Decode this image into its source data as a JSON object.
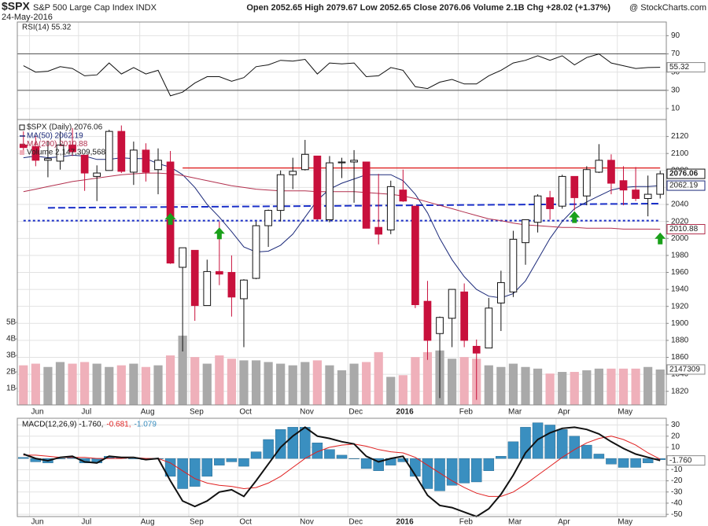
{
  "header": {
    "symbol": "$SPX",
    "name": "S&P 500 Large Cap Index INDX",
    "date": "24-May-2016",
    "quote": "Open 2052.65 High 2079.67 Low 2052.65 Close 2076.06 Volume 2.1B Chg +28.02 (+1.37%)",
    "source": "@ StockCharts.com"
  },
  "chart_data": [
    {
      "type": "line",
      "series": [
        {
          "name": "RSI(14) 55.32",
          "color": "#111111",
          "values": [
            57,
            50,
            51,
            56,
            54,
            46,
            47,
            60,
            48,
            55,
            48,
            52,
            24,
            28,
            38,
            45,
            45,
            40,
            44,
            56,
            58,
            63,
            62,
            64,
            48,
            60,
            59,
            60,
            45,
            46,
            55,
            52,
            34,
            32,
            39,
            42,
            37,
            37,
            46,
            52,
            60,
            63,
            68,
            63,
            68,
            58,
            66,
            70,
            60,
            57,
            54,
            55,
            55.32
          ]
        }
      ],
      "thresholds": [
        30,
        70
      ],
      "ylim": [
        -2,
        105
      ],
      "yticks": [
        10,
        30,
        50,
        70,
        90
      ],
      "grid": true
    },
    {
      "type": "candlestick",
      "title": "$SPX (Daily) 2076.06",
      "categories": [
        null,
        "Jun",
        null,
        null,
        null,
        "Jul",
        null,
        null,
        null,
        null,
        "Aug",
        null,
        null,
        null,
        "Sep",
        null,
        null,
        null,
        "Oct",
        null,
        null,
        null,
        null,
        "Nov",
        null,
        null,
        null,
        "Dec",
        null,
        null,
        null,
        "2016",
        null,
        null,
        null,
        null,
        "Feb",
        null,
        null,
        null,
        "Mar",
        null,
        null,
        null,
        "Apr",
        null,
        null,
        null,
        null,
        "May",
        null,
        null,
        null
      ],
      "open": [
        2110,
        2108,
        2092,
        2091,
        2110,
        2098,
        2073,
        2080,
        2126,
        2078,
        2104,
        2081,
        2090,
        1966,
        1986,
        1921,
        1961,
        1960,
        1929,
        1953,
        2015,
        2033,
        2075,
        2081,
        2097,
        2022,
        2089,
        2090,
        2090,
        2013,
        2010,
        2057,
        2038,
        1926,
        1888,
        1906,
        1937,
        1873,
        1871,
        1924,
        1937,
        1995,
        2019,
        2048,
        2038,
        2073,
        2050,
        2078,
        2092,
        2068,
        2057,
        2047,
        2052
      ],
      "high": [
        2126,
        2121,
        2115,
        2126,
        2130,
        2098,
        2086,
        2128,
        2133,
        2114,
        2112,
        2106,
        2103,
        1989,
        1986,
        1975,
        2020,
        1980,
        1952,
        2020,
        2034,
        2080,
        2095,
        2116,
        2097,
        2097,
        2095,
        2104,
        2090,
        2076,
        2068,
        2081,
        2038,
        1950,
        1908,
        1940,
        1947,
        1881,
        1930,
        1962,
        2009,
        2022,
        2052,
        2056,
        2075,
        2073,
        2085,
        2111,
        2099,
        2085,
        2084,
        2074,
        2079.67
      ],
      "low": [
        2099,
        2085,
        2072,
        2081,
        2097,
        2056,
        2044,
        2080,
        2077,
        2063,
        2067,
        2052,
        1970,
        1867,
        1903,
        1921,
        1945,
        1908,
        1872,
        1952,
        1990,
        2020,
        2058,
        2080,
        2022,
        2019,
        2071,
        2042,
        2013,
        1993,
        2005,
        2043,
        1918,
        1857,
        1812,
        1872,
        1872,
        1810,
        1871,
        1891,
        1931,
        1969,
        2007,
        2022,
        2035,
        2033,
        2039,
        2077,
        2052,
        2039,
        2044,
        2026,
        2047
      ],
      "close": [
        2107,
        2092,
        2094,
        2110,
        2102,
        2077,
        2077,
        2126,
        2079,
        2104,
        2078,
        2092,
        1971,
        1989,
        1921,
        1961,
        1958,
        1931,
        1951,
        2015,
        2033,
        2075,
        2079,
        2099,
        2023,
        2089,
        2090,
        2092,
        2012,
        2005,
        2061,
        2044,
        1922,
        1880,
        1907,
        1940,
        1880,
        1865,
        1918,
        1948,
        1999,
        2022,
        2050,
        2035,
        2073,
        2048,
        2081,
        2092,
        2065,
        2057,
        2047,
        2052,
        2076.06
      ],
      "up_color": "#111111",
      "down_color": "#c8103c",
      "series": [
        {
          "name": "MA(50) 2062.19",
          "color": "#1c2a7a",
          "values": [
            2095,
            2097,
            2095,
            2096,
            2098,
            2097,
            2093,
            2093,
            2095,
            2094,
            2094,
            2088,
            2084,
            2075,
            2060,
            2040,
            2025,
            2008,
            1990,
            1984,
            1985,
            1992,
            2005,
            2025,
            2045,
            2058,
            2065,
            2070,
            2075,
            2075,
            2075,
            2068,
            2052,
            2030,
            2000,
            1975,
            1955,
            1940,
            1932,
            1930,
            1935,
            1950,
            1975,
            2000,
            2020,
            2035,
            2043,
            2050,
            2057,
            2060,
            2061,
            2061,
            2062.19
          ]
        },
        {
          "name": "MA(200) 2010.88",
          "color": "#b2304e",
          "values": [
            2055,
            2058,
            2061,
            2064,
            2067,
            2069,
            2071,
            2073,
            2075,
            2076,
            2077,
            2077,
            2076,
            2074,
            2071,
            2068,
            2065,
            2062,
            2060,
            2058,
            2057,
            2056,
            2056,
            2056,
            2055,
            2055,
            2055,
            2055,
            2054,
            2053,
            2052,
            2050,
            2047,
            2043,
            2039,
            2035,
            2031,
            2027,
            2023,
            2021,
            2018,
            2016,
            2015,
            2014,
            2013,
            2013,
            2012,
            2012,
            2012,
            2011,
            2011,
            2011,
            2010.88
          ]
        }
      ],
      "volume": {
        "name": "Volume 2,147,309,568",
        "up_color": "#a9a9a9",
        "down_color": "#efb0ba",
        "last_label": "2147309",
        "values": [
          2400000000,
          2500000000,
          2300000000,
          2600000000,
          2500000000,
          2600000000,
          2500000000,
          2300000000,
          2400000000,
          2500000000,
          2300000000,
          2400000000,
          3000000000,
          4200000000,
          2900000000,
          2500000000,
          3000000000,
          2800000000,
          2700000000,
          2700000000,
          2600000000,
          2500000000,
          2400000000,
          2600000000,
          2700000000,
          2400000000,
          2100000000,
          2500000000,
          2600000000,
          3200000000,
          1700000000,
          1800000000,
          2900000000,
          3200000000,
          3300000000,
          2800000000,
          2900000000,
          2800000000,
          2400000000,
          2300000000,
          2500000000,
          2300000000,
          2200000000,
          1900000000,
          2000000000,
          2000000000,
          2100000000,
          2200000000,
          2200000000,
          2200000000,
          2200000000,
          2300000000,
          2147309568
        ],
        "ylim": [
          0,
          17300000000
        ],
        "yticks": [
          {
            "value": 1000000000,
            "label": "1B"
          },
          {
            "value": 2000000000,
            "label": "2B"
          },
          {
            "value": 3000000000,
            "label": "3B"
          },
          {
            "value": 4000000000,
            "label": "4B"
          },
          {
            "value": 5000000000,
            "label": "5B"
          }
        ]
      },
      "lines": [
        {
          "color": "#e03030",
          "style": "solid",
          "start": [
            13,
            2083
          ],
          "end": [
            52,
            2083
          ]
        },
        {
          "color": "#1a2fc8",
          "style": "dashed",
          "start": [
            2,
            2036
          ],
          "end": [
            52,
            2041
          ]
        },
        {
          "color": "#1a2fc8",
          "style": "dotted",
          "start": [
            0,
            2021
          ],
          "end": [
            52,
            2021
          ]
        }
      ],
      "arrows": [
        {
          "index": 12,
          "value": 2030
        },
        {
          "index": 16,
          "value": 2013
        },
        {
          "index": 45,
          "value": 2032
        },
        {
          "index": 52,
          "value": 2007
        }
      ],
      "arrow_color": "#1aa01a",
      "ylim": [
        1804,
        2140
      ],
      "yticks": [
        1820,
        1840,
        1860,
        1880,
        1900,
        1920,
        1940,
        1960,
        1980,
        2000,
        2020,
        2040,
        2060,
        2080,
        2100,
        2120
      ],
      "grid": true
    },
    {
      "type": "macd",
      "categories": [
        null,
        "Jun",
        null,
        null,
        null,
        "Jul",
        null,
        null,
        null,
        null,
        "Aug",
        null,
        null,
        null,
        "Sep",
        null,
        null,
        null,
        "Oct",
        null,
        null,
        null,
        null,
        "Nov",
        null,
        null,
        null,
        "Dec",
        null,
        null,
        null,
        "2016",
        null,
        null,
        null,
        null,
        "Feb",
        null,
        null,
        null,
        "Mar",
        null,
        null,
        null,
        "Apr",
        null,
        null,
        null,
        null,
        "May",
        null,
        null,
        null
      ],
      "series": [
        {
          "name": "MACD(12,26,9) -1.760,",
          "color": "#111111",
          "last_label": "-1.760",
          "values": [
            4,
            0,
            -2,
            1,
            2,
            -3,
            -4,
            2,
            1,
            1,
            -1,
            0,
            -20,
            -38,
            -43,
            -38,
            -30,
            -28,
            -34,
            -20,
            -5,
            10,
            20,
            28,
            20,
            18,
            15,
            13,
            2,
            -3,
            0,
            2,
            -15,
            -33,
            -42,
            -44,
            -48,
            -52,
            -45,
            -32,
            -15,
            5,
            17,
            23,
            27,
            28,
            26,
            22,
            15,
            9,
            4,
            1,
            -1.76
          ]
        },
        {
          "name": "-0.681,",
          "color": "#e02020",
          "values": [
            3,
            3,
            2,
            1,
            1,
            1,
            0,
            0,
            0,
            1,
            0,
            0,
            -4,
            -11,
            -18,
            -22,
            -24,
            -25,
            -27,
            -26,
            -22,
            -16,
            -8,
            0,
            6,
            10,
            12,
            13,
            11,
            8,
            6,
            5,
            1,
            -6,
            -13,
            -20,
            -26,
            -31,
            -34,
            -34,
            -30,
            -23,
            -15,
            -7,
            1,
            8,
            14,
            18,
            20,
            17,
            12,
            5,
            -0.681
          ]
        },
        {
          "name": "-1.079",
          "color": "#3a8fc0",
          "values": [
            1,
            -3,
            -4,
            0,
            1,
            -4,
            -4,
            2,
            1,
            0,
            -1,
            0,
            -16,
            -27,
            -25,
            -16,
            -6,
            -3,
            -7,
            6,
            17,
            26,
            28,
            28,
            14,
            8,
            3,
            0,
            -9,
            -11,
            -6,
            -3,
            -16,
            -27,
            -29,
            -24,
            -22,
            -21,
            -11,
            2,
            15,
            28,
            32,
            30,
            26,
            20,
            12,
            4,
            -5,
            -8,
            -8,
            -4,
            -1.079
          ]
        }
      ],
      "ylim": [
        -52,
        36
      ],
      "yticks": [
        30,
        20,
        10,
        0,
        -10,
        -20,
        -30,
        -40,
        -50
      ],
      "grid": true
    }
  ]
}
